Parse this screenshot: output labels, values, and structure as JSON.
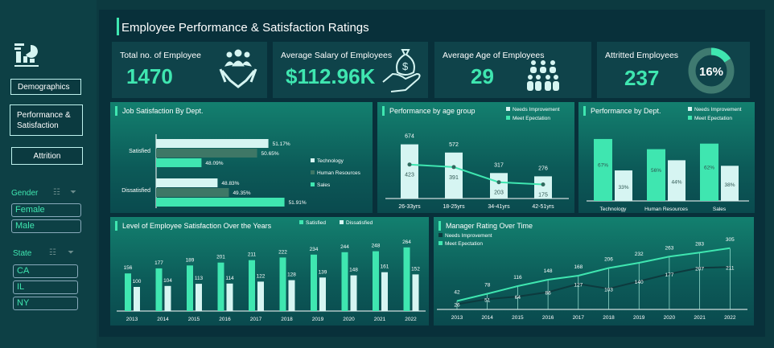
{
  "title": "Employee Performance & Satisfaction Ratings",
  "sidebar": {
    "logo_icon": "dashboard-chart-icon",
    "nav": [
      {
        "label": "Demographics"
      },
      {
        "label": "Performance & Satisfaction"
      },
      {
        "label": "Attrition"
      }
    ],
    "gender": {
      "label": "Gender",
      "options": [
        "Female",
        "Male"
      ]
    },
    "state": {
      "label": "State",
      "options": [
        "CA",
        "IL",
        "NY"
      ]
    }
  },
  "kpis": [
    {
      "label": "Total no. of Employee",
      "value": "1470",
      "icon": "handshake-people-icon"
    },
    {
      "label": "Average Salary of Employees",
      "value": "$112.96K",
      "icon": "money-bag-hand-icon"
    },
    {
      "label": "Average Age of Employees",
      "value": "29",
      "icon": "people-group-icon"
    },
    {
      "label": "Attritted Employees",
      "value": "237",
      "donut_label": "16%",
      "donut_fraction": 0.16
    }
  ],
  "colors": {
    "accent": "#3fe6b0",
    "light": "#d6f5f2",
    "hr": "#3e7766",
    "dark_line": "#0d3a3e"
  },
  "chart_data": [
    {
      "type": "bar",
      "orientation": "horizontal",
      "title": "Job Satisfaction By Dept.",
      "categories": [
        "Satisfied",
        "Dissatisfied"
      ],
      "series": [
        {
          "name": "Technology",
          "values": [
            51.17,
            48.83
          ],
          "labels": [
            "51.17%",
            "48.83%"
          ]
        },
        {
          "name": "Human Resources",
          "values": [
            50.65,
            49.35
          ],
          "labels": [
            "50.65%",
            "49.35%"
          ]
        },
        {
          "name": "Sales",
          "values": [
            48.09,
            51.91
          ],
          "labels": [
            "48.09%",
            "51.91%"
          ]
        }
      ],
      "legend": "right"
    },
    {
      "type": "bar+line",
      "title": "Performance by age group",
      "categories": [
        "26-33yrs",
        "18-25yrs",
        "34-41yrs",
        "42-51yrs"
      ],
      "series": [
        {
          "name": "Needs Improvement",
          "values": [
            674,
            572,
            317,
            276
          ]
        },
        {
          "name": "Meet Epectation",
          "values": [
            423,
            391,
            203,
            175
          ]
        }
      ],
      "legend": "top-right"
    },
    {
      "type": "bar",
      "title": "Performance by Dept.",
      "categories": [
        "Technology",
        "Human Resources",
        "Sales"
      ],
      "series": [
        {
          "name": "Needs Improvement",
          "values": [
            33,
            44,
            38
          ],
          "labels": [
            "33%",
            "44%",
            "38%"
          ]
        },
        {
          "name": "Meet Epectation",
          "values": [
            67,
            56,
            62
          ],
          "labels": [
            "67%",
            "56%",
            "62%"
          ]
        }
      ],
      "legend": "top-right"
    },
    {
      "type": "bar",
      "title": "Level of Employee Satisfaction Over the Years",
      "categories": [
        "2013",
        "2014",
        "2015",
        "2016",
        "2017",
        "2018",
        "2019",
        "2020",
        "2021",
        "2022"
      ],
      "series": [
        {
          "name": "Satisfied",
          "values": [
            156,
            177,
            189,
            201,
            211,
            222,
            234,
            244,
            248,
            264
          ]
        },
        {
          "name": "Dissatisfied",
          "values": [
            100,
            104,
            113,
            114,
            122,
            128,
            139,
            148,
            161,
            152
          ]
        }
      ],
      "legend": "top-right"
    },
    {
      "type": "line",
      "title": "Manager Rating Over Time",
      "categories": [
        "2013",
        "2014",
        "2015",
        "2016",
        "2017",
        "2018",
        "2019",
        "2020",
        "2021",
        "2022"
      ],
      "series": [
        {
          "name": "Needs Improvement",
          "values": [
            26,
            51,
            64,
            86,
            127,
            103,
            140,
            177,
            207,
            211
          ]
        },
        {
          "name": "Meet Epectation",
          "values": [
            42,
            78,
            116,
            148,
            168,
            206,
            232,
            263,
            283,
            305
          ]
        }
      ],
      "legend": "top-left"
    }
  ]
}
